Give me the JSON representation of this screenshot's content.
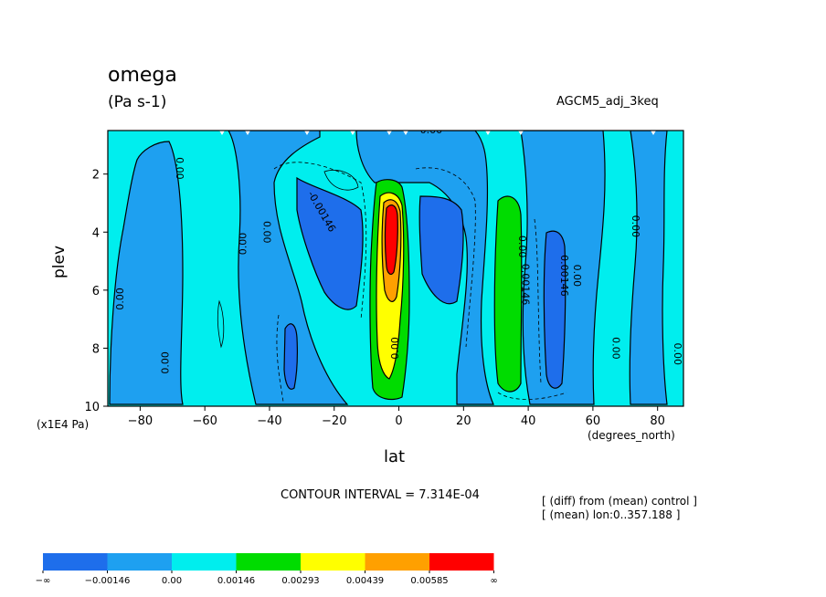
{
  "header": {
    "title": "omega",
    "units": "(Pa s-1)",
    "run_name": "AGCM5_adj_3keq"
  },
  "footer": {
    "contour_interval": "CONTOUR INTERVAL = 7.314E-04",
    "note_line1": "[ (diff) from (mean) control ]",
    "note_line2": "[ (mean) lon:0..357.188 ]"
  },
  "axes": {
    "xlabel": "lat",
    "ylabel": "plev",
    "x_unit": "(degrees_north)",
    "y_unit": "(x1E4 Pa)"
  },
  "chart_data": {
    "type": "heatmap",
    "xlabel": "lat",
    "ylabel": "plev",
    "xlim": [
      -90,
      88
    ],
    "ylim": [
      10,
      0.5
    ],
    "x_ticks": [
      -80,
      -60,
      -40,
      -20,
      0,
      20,
      40,
      60,
      80
    ],
    "x_tick_labels": [
      "−80",
      "−60",
      "−40",
      "−20",
      "0",
      "20",
      "40",
      "60",
      "80"
    ],
    "y_ticks": [
      2,
      4,
      6,
      8,
      10
    ],
    "y_tick_labels": [
      "2",
      "4",
      "6",
      "8",
      "10"
    ],
    "contour_labels": [
      {
        "text": "0.00",
        "lat": 10,
        "plev": 0.5,
        "rotate": 0
      },
      {
        "text": "0.00",
        "lat": -68,
        "plev": 1.8,
        "rotate": 90
      },
      {
        "text": "0.00",
        "lat": -48,
        "plev": 4.4,
        "rotate": -90
      },
      {
        "text": "0.00",
        "lat": -41,
        "plev": 4.0,
        "rotate": 90
      },
      {
        "text": "-0.00146",
        "lat": -24,
        "plev": 3.3,
        "rotate": 60
      },
      {
        "text": "0.00",
        "lat": -86,
        "plev": 6.3,
        "rotate": -90
      },
      {
        "text": "0.00",
        "lat": -72,
        "plev": 8.5,
        "rotate": -90
      },
      {
        "text": "0.00",
        "lat": 38,
        "plev": 4.5,
        "rotate": 90
      },
      {
        "text": "0.00146",
        "lat": 39,
        "plev": 5.8,
        "rotate": 90
      },
      {
        "text": "0.00146",
        "lat": 51,
        "plev": 5.5,
        "rotate": 90
      },
      {
        "text": "0.00",
        "lat": 55,
        "plev": 5.5,
        "rotate": 90
      },
      {
        "text": "0.00",
        "lat": 67,
        "plev": 8.0,
        "rotate": 90
      },
      {
        "text": "0.00",
        "lat": 73,
        "plev": 3.8,
        "rotate": 90
      },
      {
        "text": "0.00",
        "lat": 86,
        "plev": 8.2,
        "rotate": 90
      },
      {
        "text": "0.00",
        "lat": -1,
        "plev": 8.0,
        "rotate": -90
      }
    ],
    "colorbar": {
      "levels": [
        "−∞",
        "−0.00146",
        "0.00",
        "0.00146",
        "0.00293",
        "0.00439",
        "0.00585",
        "∞"
      ],
      "colors": [
        "#1e6eeb",
        "#1ea0f0",
        "#00eeee",
        "#00dc00",
        "#ffff00",
        "#ffa000",
        "#ff0000"
      ]
    }
  }
}
